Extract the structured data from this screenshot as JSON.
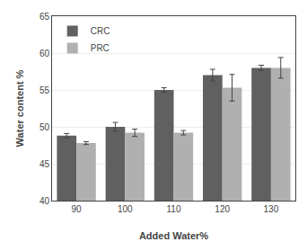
{
  "chart_data": {
    "type": "bar",
    "categories": [
      "90",
      "100",
      "110",
      "120",
      "130"
    ],
    "series": [
      {
        "name": "CRC",
        "color": "#606060",
        "values": [
          48.8,
          50.0,
          55.0,
          57.0,
          58.0
        ],
        "errors": [
          0.3,
          0.6,
          0.3,
          0.8,
          0.35
        ]
      },
      {
        "name": "PRC",
        "color": "#b0b0b0",
        "values": [
          47.8,
          49.2,
          49.2,
          55.3,
          58.0
        ],
        "errors": [
          0.2,
          0.5,
          0.3,
          1.8,
          1.4
        ]
      }
    ],
    "xlabel": "Added Water%",
    "ylabel": "Water content %",
    "ylim": [
      40,
      65
    ],
    "yticks": [
      40,
      45,
      50,
      55,
      60,
      65
    ],
    "grid": true,
    "legend": "upper left"
  }
}
